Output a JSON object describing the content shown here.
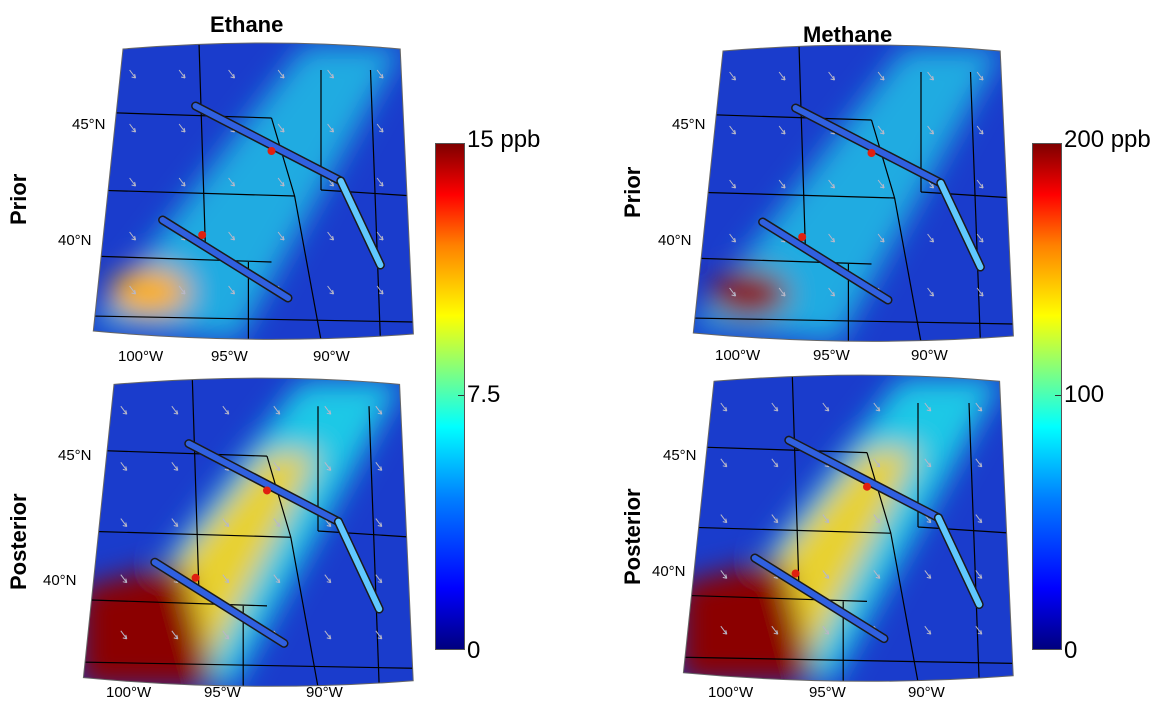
{
  "columns": [
    {
      "title": "Ethane",
      "colorbar": {
        "max": "15 ppb",
        "mid": "7.5",
        "min": "0"
      }
    },
    {
      "title": "Methane",
      "colorbar": {
        "max": "200 ppb",
        "mid": "100",
        "min": "0"
      }
    }
  ],
  "rows": [
    "Prior",
    "Posterior"
  ],
  "latitude_labels": [
    "45°N",
    "40°N"
  ],
  "longitude_labels": [
    "100°W",
    "95°W",
    "90°W"
  ],
  "colors": {
    "background_field": "#1a3ccc",
    "plume": "#1fd0e8",
    "source": "#8b0000",
    "borders": "#000000",
    "wind_arrows": "#b8b8c8"
  },
  "colormap": "jet"
}
